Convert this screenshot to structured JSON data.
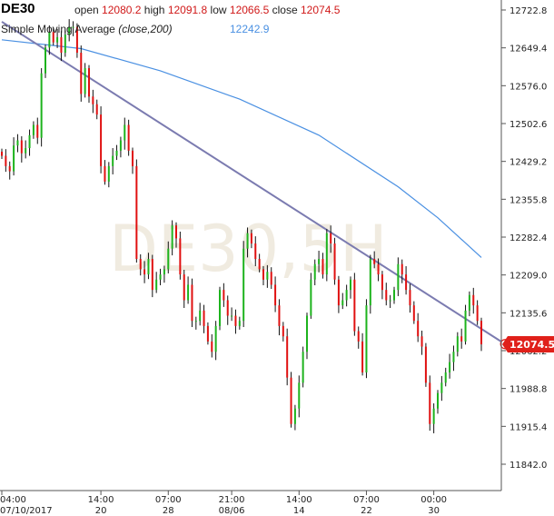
{
  "header": {
    "symbol": "DE30",
    "open_label": "open",
    "open": "12080.2",
    "high_label": "high",
    "high": "12091.8",
    "low_label": "low",
    "low": "12066.5",
    "close_label": "close",
    "close": "12074.5",
    "sma_label": "Simple Moving Average",
    "sma_params": "(close,200)",
    "sma_value": "12242.9"
  },
  "watermark": "DE30,5H",
  "last_price": "12074.5",
  "colors": {
    "up": "#1db31d",
    "down": "#e01010",
    "sma": "#4a90e2",
    "trend": "#7b7bb0",
    "price_badge": "#e0201a",
    "axis": "#555555"
  },
  "chart_data": {
    "type": "candlestick",
    "ylim": [
      11820,
      12760
    ],
    "y_ticks": [
      "12722.8",
      "12649.4",
      "12576.0",
      "12502.6",
      "12429.2",
      "12355.8",
      "12282.4",
      "12209.0",
      "12135.6",
      "12062.2",
      "11988.8",
      "11915.4",
      "11842.0"
    ],
    "x_ticks": [
      {
        "time": "04:00",
        "date": "07/10/2017",
        "i": 0
      },
      {
        "time": "14:00",
        "date": "20",
        "i": 25
      },
      {
        "time": "07:00",
        "date": "28",
        "i": 42
      },
      {
        "time": "21:00",
        "date": "08/06",
        "i": 58
      },
      {
        "time": "14:00",
        "date": "14",
        "i": 75
      },
      {
        "time": "07:00",
        "date": "22",
        "i": 92
      },
      {
        "time": "00:00",
        "date": "30",
        "i": 109
      }
    ],
    "candle_count": 122,
    "closes": [
      12440,
      12420,
      12410,
      12460,
      12470,
      12445,
      12455,
      12480,
      12500,
      12475,
      12600,
      12650,
      12680,
      12660,
      12670,
      12640,
      12675,
      12690,
      12690,
      12640,
      12560,
      12610,
      12555,
      12540,
      12520,
      12420,
      12390,
      12420,
      12440,
      12450,
      12470,
      12500,
      12450,
      12420,
      12240,
      12220,
      12210,
      12240,
      12180,
      12200,
      12210,
      12220,
      12260,
      12305,
      12280,
      12210,
      12160,
      12190,
      12120,
      12120,
      12140,
      12110,
      12080,
      12060,
      12110,
      12180,
      12160,
      12130,
      12130,
      12110,
      12120,
      12260,
      12290,
      12270,
      12240,
      12220,
      12200,
      12215,
      12190,
      12150,
      12110,
      12090,
      12010,
      11920,
      11950,
      12000,
      12060,
      12130,
      12200,
      12230,
      12240,
      12210,
      12290,
      12270,
      12200,
      12150,
      12160,
      12180,
      12200,
      12100,
      12080,
      12020,
      12150,
      12240,
      12230,
      12210,
      12180,
      12160,
      12160,
      12180,
      12230,
      12210,
      12180,
      12150,
      12120,
      12090,
      12070,
      12000,
      11920,
      11950,
      11980,
      12000,
      12020,
      12040,
      12060,
      12090,
      12080,
      12140,
      12170,
      12150,
      12120,
      12074.5
    ],
    "sma": [
      [
        0,
        12665
      ],
      [
        20,
        12648
      ],
      [
        40,
        12605
      ],
      [
        60,
        12550
      ],
      [
        80,
        12480
      ],
      [
        100,
        12380
      ],
      [
        110,
        12320
      ],
      [
        121,
        12243
      ]
    ],
    "trendline": [
      [
        0,
        12700
      ],
      [
        127,
        12075
      ]
    ]
  }
}
